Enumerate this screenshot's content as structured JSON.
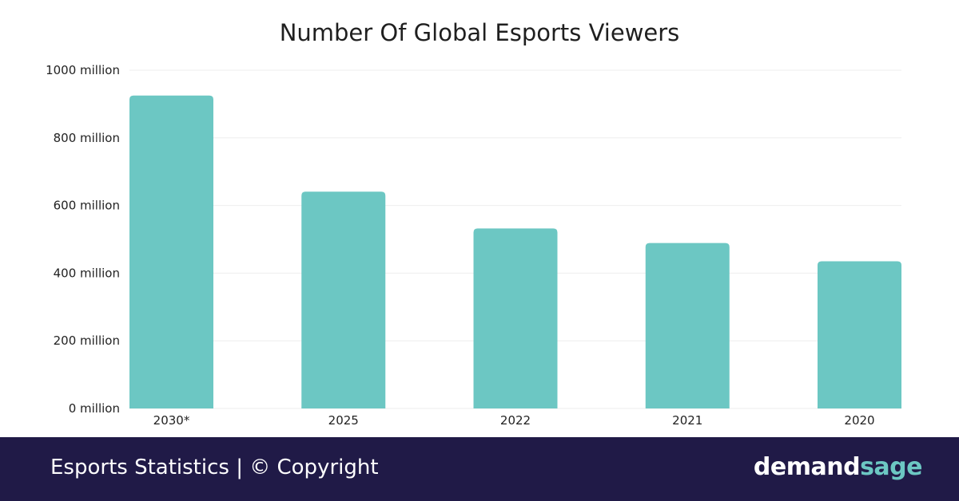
{
  "colors": {
    "bar": "#6cc7c3",
    "footer_bg": "#201a47",
    "brand_accent": "#6cc7c3",
    "grid": "#eeeeee"
  },
  "chart_data": {
    "type": "bar",
    "title": "Number Of Global Esports Viewers",
    "categories": [
      "2030*",
      "2025",
      "2022",
      "2021",
      "2020"
    ],
    "values": [
      925,
      641,
      532,
      489,
      435
    ],
    "unit_suffix": " million",
    "ylim": [
      0,
      1000
    ],
    "yticks": [
      0,
      200,
      400,
      600,
      800,
      1000
    ],
    "ytick_labels": [
      "0 million",
      "200 million",
      "400 million",
      "600 million",
      "800 million",
      "1000 million"
    ],
    "grid": true,
    "legend": false
  },
  "footer": {
    "text": "Esports Statistics | © Copyright",
    "brand_part1": "demand",
    "brand_part2": "sage"
  }
}
